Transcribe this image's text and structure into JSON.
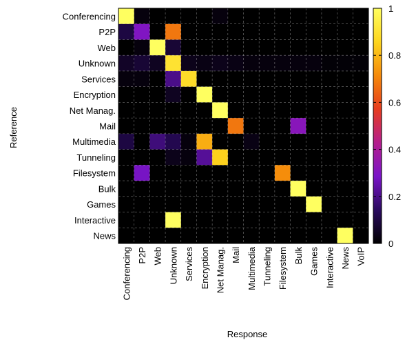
{
  "chart_data": {
    "type": "heatmap",
    "title": "",
    "xlabel": "Response",
    "ylabel": "Reference",
    "x_categories": [
      "Conferencing",
      "P2P",
      "Web",
      "Unknown",
      "Services",
      "Encryption",
      "Net Manag.",
      "Mail",
      "Multimedia",
      "Tunneling",
      "Filesystem",
      "Bulk",
      "Games",
      "Interactive",
      "News",
      "VoIP"
    ],
    "y_categories": [
      "Conferencing",
      "P2P",
      "Web",
      "Unknown",
      "Services",
      "Encryption",
      "Net Manag.",
      "Mail",
      "Multimedia",
      "Tunneling",
      "Filesystem",
      "Bulk",
      "Games",
      "Interactive",
      "News"
    ],
    "values": [
      [
        1.0,
        0.02,
        0.0,
        0.0,
        0.0,
        0.0,
        0.02,
        0.0,
        0.0,
        0.0,
        0.0,
        0.0,
        0.0,
        0.0,
        0.0,
        0.0
      ],
      [
        0.1,
        0.3,
        0.0,
        0.68,
        0.0,
        0.0,
        0.0,
        0.0,
        0.0,
        0.0,
        0.0,
        0.0,
        0.0,
        0.0,
        0.0,
        0.0
      ],
      [
        0.0,
        0.02,
        1.0,
        0.08,
        0.0,
        0.0,
        0.0,
        0.0,
        0.0,
        0.0,
        0.0,
        0.0,
        0.0,
        0.0,
        0.0,
        0.0
      ],
      [
        0.06,
        0.08,
        0.05,
        0.9,
        0.04,
        0.03,
        0.04,
        0.03,
        0.02,
        0.02,
        0.02,
        0.02,
        0.02,
        0.01,
        0.01,
        0.01
      ],
      [
        0.02,
        0.02,
        0.0,
        0.2,
        0.88,
        0.0,
        0.0,
        0.0,
        0.0,
        0.0,
        0.0,
        0.0,
        0.0,
        0.0,
        0.0,
        0.0
      ],
      [
        0.0,
        0.0,
        0.0,
        0.05,
        0.0,
        1.0,
        0.0,
        0.0,
        0.0,
        0.0,
        0.0,
        0.0,
        0.0,
        0.0,
        0.0,
        0.0
      ],
      [
        0.0,
        0.0,
        0.0,
        0.0,
        0.0,
        0.0,
        1.0,
        0.0,
        0.0,
        0.0,
        0.0,
        0.0,
        0.0,
        0.0,
        0.0,
        0.0
      ],
      [
        0.0,
        0.0,
        0.0,
        0.0,
        0.0,
        0.0,
        0.0,
        0.68,
        0.0,
        0.0,
        0.0,
        0.32,
        0.0,
        0.0,
        0.0,
        0.0
      ],
      [
        0.1,
        0.0,
        0.18,
        0.12,
        0.02,
        0.78,
        0.0,
        0.0,
        0.03,
        0.0,
        0.0,
        0.0,
        0.0,
        0.0,
        0.0,
        0.0
      ],
      [
        0.0,
        0.0,
        0.0,
        0.04,
        0.02,
        0.22,
        0.85,
        0.0,
        0.0,
        0.0,
        0.0,
        0.0,
        0.0,
        0.0,
        0.0,
        0.0
      ],
      [
        0.0,
        0.28,
        0.0,
        0.0,
        0.0,
        0.0,
        0.0,
        0.0,
        0.0,
        0.0,
        0.72,
        0.0,
        0.0,
        0.0,
        0.0,
        0.0
      ],
      [
        0.0,
        0.0,
        0.0,
        0.0,
        0.0,
        0.0,
        0.0,
        0.0,
        0.0,
        0.0,
        0.0,
        1.0,
        0.0,
        0.0,
        0.0,
        0.0
      ],
      [
        0.0,
        0.0,
        0.0,
        0.0,
        0.0,
        0.0,
        0.0,
        0.0,
        0.0,
        0.0,
        0.0,
        0.0,
        1.0,
        0.0,
        0.0,
        0.0
      ],
      [
        0.0,
        0.0,
        0.0,
        1.0,
        0.0,
        0.0,
        0.0,
        0.0,
        0.0,
        0.0,
        0.0,
        0.0,
        0.0,
        0.0,
        0.0,
        0.0
      ],
      [
        0.0,
        0.0,
        0.0,
        0.0,
        0.0,
        0.0,
        0.0,
        0.0,
        0.0,
        0.0,
        0.0,
        0.0,
        0.0,
        0.0,
        1.0,
        0.0
      ]
    ],
    "zlim": [
      0,
      1
    ],
    "colorbar_ticks": [
      "0",
      "0.2",
      "0.4",
      "0.6",
      "0.8",
      "1"
    ],
    "colormap": [
      "#000000",
      "#2a0a5e",
      "#7a14c8",
      "#b41e8c",
      "#e63c1e",
      "#f58a0a",
      "#fdd51e",
      "#ffff60"
    ],
    "grid": true,
    "grid_color": "#c8c8c8",
    "legend": "colorbar-right"
  }
}
